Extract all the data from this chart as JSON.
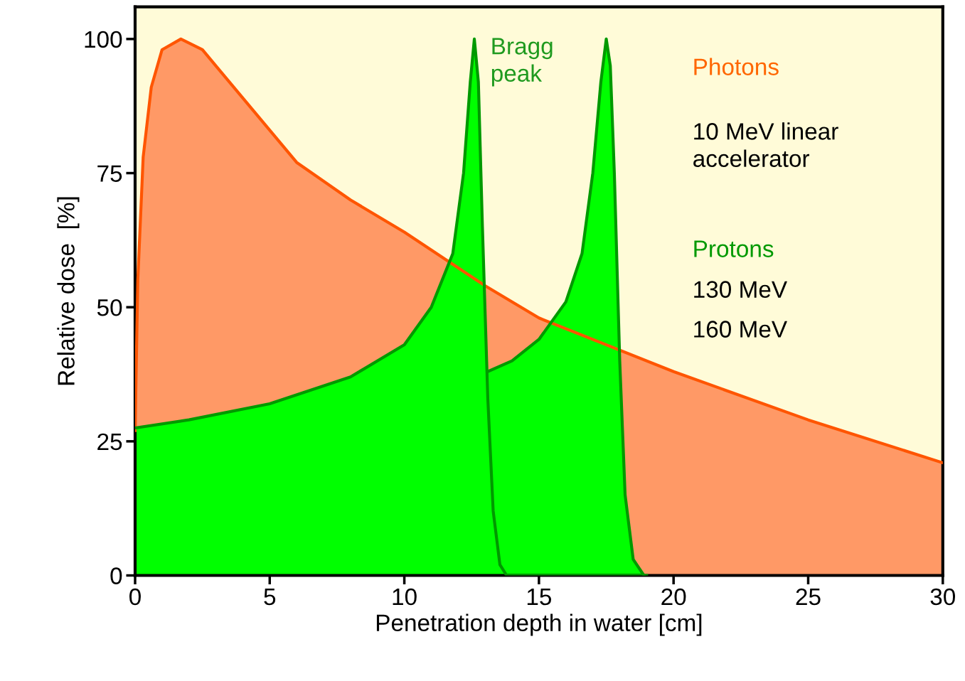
{
  "chart_data": {
    "type": "area",
    "xlabel": "Penetration depth in water [cm]",
    "ylabel": "Relative dose  [%]",
    "xlim": [
      0,
      30
    ],
    "ylim": [
      0,
      106
    ],
    "xticks": [
      0,
      5,
      10,
      15,
      20,
      25,
      30
    ],
    "yticks": [
      0,
      25,
      50,
      75,
      100
    ],
    "grid": false,
    "legend": false,
    "series": [
      {
        "name": "Photons",
        "color": "#ff9966",
        "x": [
          0,
          0.1,
          0.3,
          0.6,
          1.0,
          1.7,
          2.5,
          3,
          4,
          5,
          6,
          8,
          10,
          13,
          15,
          20,
          25,
          30
        ],
        "values": [
          27,
          55,
          78,
          91,
          98,
          100,
          98,
          95,
          89,
          83,
          77,
          70,
          64,
          54,
          48,
          38,
          29,
          21
        ]
      },
      {
        "name": "Protons",
        "color": "#00ff00",
        "x": [
          0,
          2,
          5,
          8,
          10,
          11,
          11.8,
          12.2,
          12.45,
          12.6,
          12.75,
          12.9,
          13.1,
          13.3,
          13.55,
          13.8,
          19
        ],
        "values": [
          27.5,
          29,
          32,
          37,
          43,
          50,
          60,
          75,
          92,
          100,
          92,
          65,
          33,
          12,
          2,
          0,
          0
        ]
      },
      {
        "color": "#00ff00",
        "x": [
          13.1,
          14,
          15,
          16,
          16.6,
          17.0,
          17.3,
          17.5,
          17.65,
          17.8,
          18.0,
          18.2,
          18.5,
          18.9
        ],
        "values": [
          38,
          40,
          44,
          51,
          60,
          75,
          92,
          100,
          95,
          75,
          40,
          15,
          3,
          0
        ]
      }
    ],
    "annotations": [
      "Bragg peak",
      "10 MeV linear accelerator",
      "130 MeV",
      "160 MeV"
    ]
  }
}
